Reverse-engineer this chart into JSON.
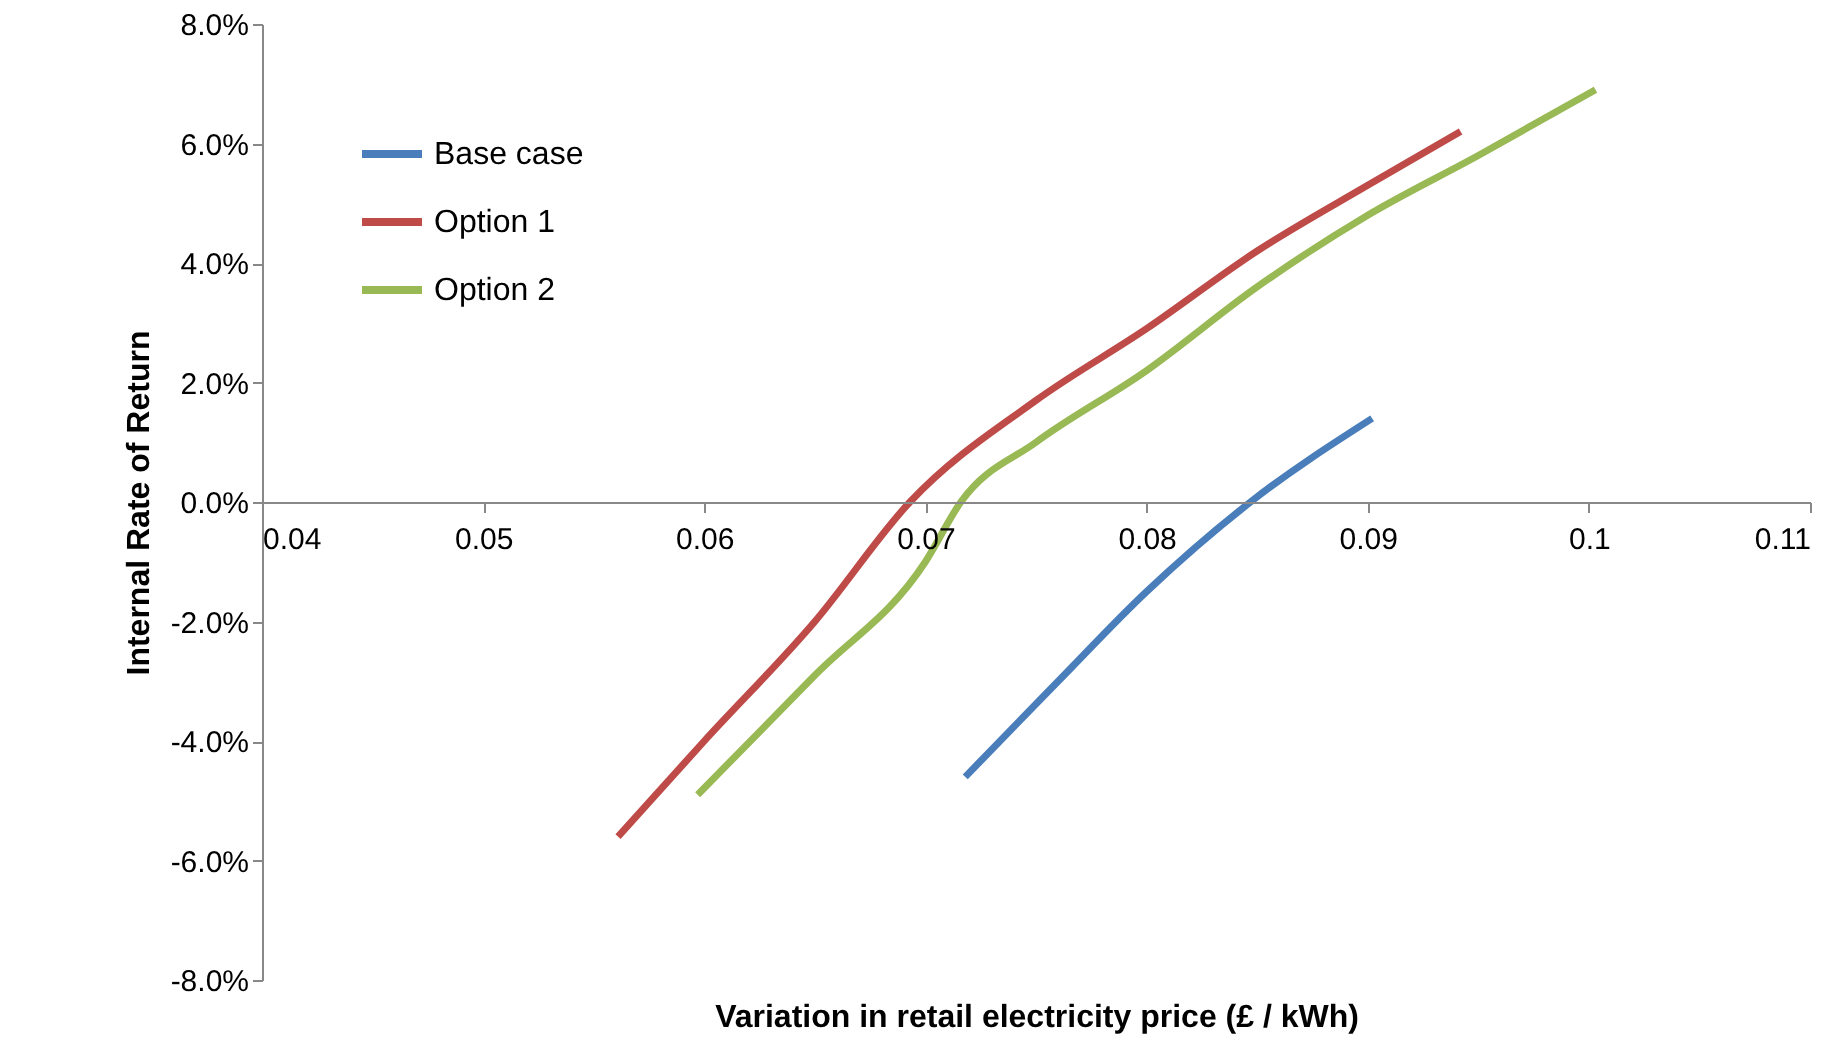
{
  "chart_data": {
    "type": "line",
    "xlabel": "Variation in retail electricity price (£ / kWh)",
    "ylabel": "Internal Rate of Return",
    "xlim": [
      0.04,
      0.11
    ],
    "xticks": [
      0.04,
      0.05,
      0.06,
      0.07,
      0.08,
      0.09,
      0.1,
      0.11
    ],
    "ylim": [
      -8,
      8
    ],
    "yticks": [
      {
        "value": -8,
        "label": "-8.0%"
      },
      {
        "value": -6,
        "label": "-6.0%"
      },
      {
        "value": -4,
        "label": "-4.0%"
      },
      {
        "value": -2,
        "label": "-2.0%"
      },
      {
        "value": 0,
        "label": "0.0%"
      },
      {
        "value": 2,
        "label": "2.0%"
      },
      {
        "value": 4,
        "label": "4.0%"
      },
      {
        "value": 6,
        "label": "6.0%"
      },
      {
        "value": 8,
        "label": "8.0%"
      }
    ],
    "legend": "top left",
    "grid": false,
    "marker": "none",
    "line_style": "solid",
    "series": [
      {
        "name": "Base case",
        "color": "#4a7ebb",
        "x": [
          0.0718,
          0.076,
          0.08,
          0.0847,
          0.0902
        ],
        "values": [
          -4.6,
          -3.0,
          -1.5,
          0,
          1.4
        ]
      },
      {
        "name": "Option 1",
        "color": "#be4b48",
        "x": [
          0.0561,
          0.06,
          0.065,
          0.0693,
          0.075,
          0.08,
          0.085,
          0.09,
          0.0942
        ],
        "values": [
          -5.6,
          -4.0,
          -2.0,
          0,
          1.7,
          2.9,
          4.2,
          5.3,
          6.2
        ]
      },
      {
        "name": "Option 2",
        "color": "#98b954",
        "x": [
          0.0597,
          0.065,
          0.07,
          0.0716,
          0.075,
          0.08,
          0.085,
          0.09,
          0.095,
          0.1003
        ],
        "values": [
          -4.9,
          -2.9,
          -1.0,
          0,
          1.0,
          2.2,
          3.6,
          4.8,
          5.8,
          6.9
        ]
      }
    ]
  }
}
